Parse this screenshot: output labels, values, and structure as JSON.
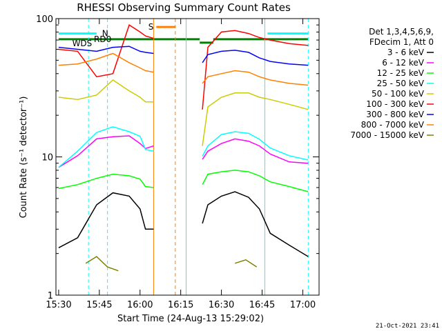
{
  "chart_data": {
    "type": "line",
    "title": "RHESSI Observing Summary Count Rates",
    "xlabel": "Start Time (24-Aug-13 15:29:02)",
    "ylabel": "Count Rate (s⁻¹ detector⁻¹)",
    "yscale": "log",
    "ylim": [
      1,
      100
    ],
    "xlim": [
      "15:29",
      "17:06"
    ],
    "x_ticks": [
      "15:30",
      "15:45",
      "16:00",
      "16:15",
      "16:30",
      "16:45",
      "17:00"
    ],
    "y_ticks": [
      "1",
      "10",
      "100"
    ],
    "legend": {
      "position": "right",
      "header": [
        "Det 1,3,4,5,6,9,",
        "FDecim 1, Att 0"
      ]
    },
    "series": [
      {
        "name": "3 - 6 keV",
        "color": "#000000",
        "segments": [
          {
            "x": [
              "15:30",
              "15:37",
              "15:44",
              "15:50",
              "15:56",
              "16:00",
              "16:02",
              "16:05"
            ],
            "y": [
              2.2,
              2.6,
              4.5,
              5.5,
              5.2,
              4.2,
              3.0,
              3.0
            ]
          },
          {
            "x": [
              "16:23",
              "16:25",
              "16:30",
              "16:35",
              "16:40",
              "16:44",
              "16:48",
              "16:55",
              "17:02"
            ],
            "y": [
              3.3,
              4.5,
              5.2,
              5.6,
              5.1,
              4.2,
              2.8,
              2.3,
              1.9
            ]
          }
        ]
      },
      {
        "name": "6 - 12 keV",
        "color": "#ff00ff",
        "segments": [
          {
            "x": [
              "15:30",
              "15:37",
              "15:44",
              "15:50",
              "15:56",
              "16:00",
              "16:02",
              "16:05"
            ],
            "y": [
              8.4,
              10.2,
              13.5,
              14.0,
              14.2,
              12.5,
              11.5,
              12.0
            ]
          },
          {
            "x": [
              "16:23",
              "16:25",
              "16:30",
              "16:35",
              "16:40",
              "16:44",
              "16:48",
              "16:55",
              "17:02"
            ],
            "y": [
              9.6,
              11.0,
              12.5,
              13.5,
              13.0,
              12.0,
              10.5,
              9.2,
              9.0
            ]
          }
        ]
      },
      {
        "name": "12 - 25 keV",
        "color": "#00ff00",
        "segments": [
          {
            "x": [
              "15:30",
              "15:37",
              "15:44",
              "15:50",
              "15:56",
              "16:00",
              "16:02",
              "16:05"
            ],
            "y": [
              5.9,
              6.3,
              7.0,
              7.5,
              7.3,
              6.9,
              6.1,
              6.0
            ]
          },
          {
            "x": [
              "16:23",
              "16:25",
              "16:30",
              "16:35",
              "16:40",
              "16:44",
              "16:48",
              "16:55",
              "17:02"
            ],
            "y": [
              6.3,
              7.5,
              7.8,
              8.0,
              7.8,
              7.3,
              6.6,
              6.1,
              5.6
            ]
          }
        ]
      },
      {
        "name": "25 - 50 keV",
        "color": "#00ffff",
        "segments": [
          {
            "x": [
              "15:30",
              "15:37",
              "15:44",
              "15:50",
              "15:56",
              "16:00",
              "16:02",
              "16:05"
            ],
            "y": [
              8.4,
              11.0,
              15.0,
              16.5,
              15.2,
              14.1,
              11.3,
              11.0
            ]
          },
          {
            "x": [
              "16:23",
              "16:25",
              "16:30",
              "16:35",
              "16:40",
              "16:44",
              "16:48",
              "16:55",
              "17:02"
            ],
            "y": [
              10.1,
              12.0,
              14.5,
              15.2,
              14.8,
              13.4,
              11.6,
              10.2,
              9.5
            ]
          }
        ]
      },
      {
        "name": "50 - 100 keV",
        "color": "#cccc00",
        "segments": [
          {
            "x": [
              "15:30",
              "15:37",
              "15:44",
              "15:50",
              "15:56",
              "16:00",
              "16:02",
              "16:05"
            ],
            "y": [
              27,
              26,
              28,
              36,
              30,
              27,
              25,
              25
            ]
          },
          {
            "x": [
              "16:23",
              "16:25",
              "16:30",
              "16:35",
              "16:40",
              "16:44",
              "16:48",
              "16:55",
              "17:02"
            ],
            "y": [
              12,
              23,
              27,
              29,
              29,
              27,
              26,
              24,
              22
            ]
          }
        ]
      },
      {
        "name": "100 - 300 keV",
        "color": "#ff0000",
        "segments": [
          {
            "x": [
              "15:30",
              "15:37",
              "15:44",
              "15:50",
              "15:56",
              "16:00",
              "16:02",
              "16:05"
            ],
            "y": [
              60,
              58,
              38,
              40,
              90,
              80,
              75,
              72
            ]
          },
          {
            "x": [
              "16:23",
              "16:25",
              "16:30",
              "16:35",
              "16:40",
              "16:44",
              "16:48",
              "16:55",
              "17:02"
            ],
            "y": [
              22,
              62,
              80,
              82,
              78,
              73,
              70,
              66,
              64
            ]
          }
        ]
      },
      {
        "name": "300 - 800 keV",
        "color": "#0000ff",
        "segments": [
          {
            "x": [
              "15:30",
              "15:37",
              "15:44",
              "15:50",
              "15:56",
              "16:00",
              "16:02",
              "16:05"
            ],
            "y": [
              62,
              60,
              58,
              62,
              63,
              58,
              57,
              56
            ]
          },
          {
            "x": [
              "16:23",
              "16:25",
              "16:30",
              "16:35",
              "16:40",
              "16:44",
              "16:48",
              "16:55",
              "17:02"
            ],
            "y": [
              48,
              55,
              58,
              59,
              57,
              52,
              49,
              47,
              46
            ]
          }
        ]
      },
      {
        "name": "800 - 7000 keV",
        "color": "#ff8000",
        "segments": [
          {
            "x": [
              "15:30",
              "15:37",
              "15:44",
              "15:50",
              "15:56",
              "16:00",
              "16:02",
              "16:05"
            ],
            "y": [
              46,
              47,
              51,
              56,
              48,
              44,
              42,
              41
            ]
          },
          {
            "x": [
              "16:23",
              "16:25",
              "16:30",
              "16:35",
              "16:40",
              "16:44",
              "16:48",
              "16:55",
              "17:02"
            ],
            "y": [
              34,
              38,
              40,
              42,
              41,
              38,
              36,
              34,
              33
            ]
          }
        ]
      },
      {
        "name": "7000 - 15000 keV",
        "color": "#808000",
        "segments": [
          {
            "x": [
              "15:40",
              "15:44",
              "15:48",
              "15:52"
            ],
            "y": [
              1.7,
              1.9,
              1.6,
              1.5
            ]
          },
          {
            "x": [
              "16:35",
              "16:39",
              "16:43"
            ],
            "y": [
              1.7,
              1.8,
              1.6
            ]
          }
        ]
      }
    ],
    "annotations": {
      "bars": [
        {
          "label": "",
          "x_start": "15:30",
          "x_end": "15:44",
          "y": 78,
          "color": "#00ffff"
        },
        {
          "label": "",
          "x_start": "16:47",
          "x_end": "17:02",
          "y": 78,
          "color": "#00ffff"
        },
        {
          "label": "",
          "x_start": "15:30",
          "x_end": "16:22",
          "y": 71,
          "color": "#008000"
        },
        {
          "label": "",
          "x_start": "16:27",
          "x_end": "17:02",
          "y": 71,
          "color": "#008000"
        },
        {
          "label": "",
          "x_start": "16:22",
          "x_end": "16:27",
          "y": 67,
          "color": "#008000"
        },
        {
          "label": "S",
          "x_start": "16:06",
          "x_end": "16:13",
          "y": 87,
          "color": "#ff8000"
        }
      ],
      "text_labels": [
        {
          "text": "N",
          "x": "15:46",
          "y": 78,
          "color": "#00ffff"
        },
        {
          "text": "RD0",
          "x": "15:43",
          "y": 71,
          "color": "#000000"
        },
        {
          "text": "WDS",
          "x": "15:35",
          "y": 66,
          "color": "#000000"
        }
      ],
      "vlines": [
        {
          "x": "15:29",
          "color": "#00ffff",
          "style": "solid"
        },
        {
          "x": "15:41",
          "color": "#00ffff",
          "style": "dashed"
        },
        {
          "x": "15:48",
          "color": "#00ffff",
          "style": "dashed"
        },
        {
          "x": "16:17",
          "color": "#00ffff",
          "style": "solid"
        },
        {
          "x": "16:46",
          "color": "#00ffff",
          "style": "solid"
        },
        {
          "x": "17:02",
          "color": "#00ffff",
          "style": "dashed"
        },
        {
          "x": "16:05",
          "color": "#ff8000",
          "style": "solid"
        },
        {
          "x": "16:13",
          "color": "#ff8000",
          "style": "dashed"
        }
      ]
    },
    "footer_date": "21-Oct-2021 23:41"
  }
}
